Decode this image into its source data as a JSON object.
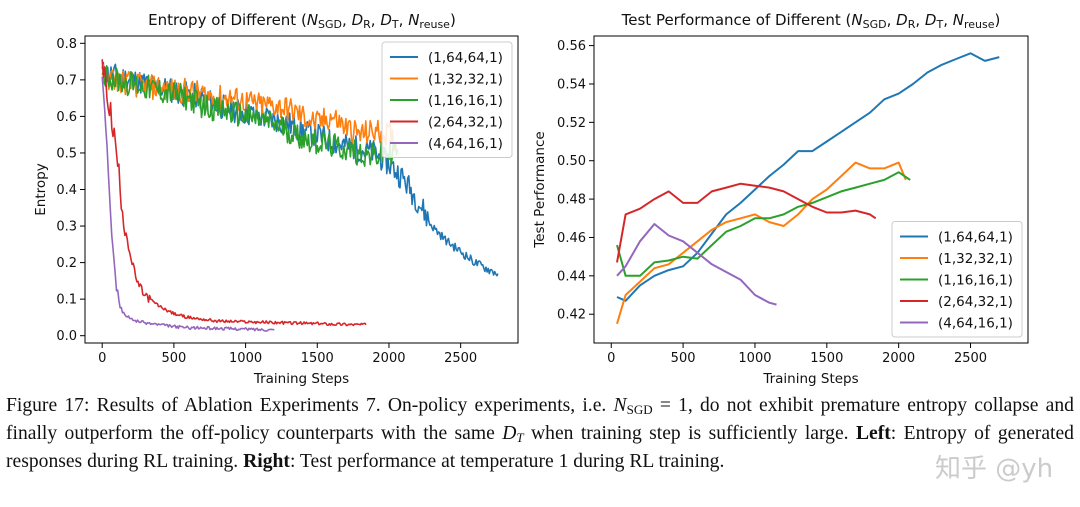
{
  "chart_data": [
    {
      "type": "line",
      "title_parts": [
        "Entropy of  Different (",
        "N",
        "SGD",
        ", ",
        "D",
        "R",
        ", ",
        "D",
        "T",
        ", ",
        "N",
        "reuse",
        ")"
      ],
      "xlabel": "Training Steps",
      "ylabel": "Entropy",
      "xlim": [
        -120,
        2900
      ],
      "ylim": [
        -0.02,
        0.82
      ],
      "xticks": [
        0,
        500,
        1000,
        1500,
        2000,
        2500
      ],
      "yticks": [
        0.0,
        0.1,
        0.2,
        0.3,
        0.4,
        0.5,
        0.6,
        0.7,
        0.8
      ],
      "ytick_labels": [
        "0.0",
        "0.1",
        "0.2",
        "0.3",
        "0.4",
        "0.5",
        "0.6",
        "0.7",
        "0.8"
      ],
      "grid": false,
      "legend": "top-right",
      "series": [
        {
          "name": "(1,64,64,1)",
          "color": "#1f77b4",
          "x": [
            0,
            100,
            200,
            300,
            400,
            500,
            600,
            700,
            800,
            900,
            1000,
            1100,
            1200,
            1300,
            1400,
            1500,
            1600,
            1700,
            1800,
            1900,
            2000,
            2100,
            2200,
            2300,
            2400,
            2500,
            2600,
            2700,
            2760
          ],
          "y": [
            0.72,
            0.71,
            0.7,
            0.69,
            0.68,
            0.67,
            0.66,
            0.65,
            0.63,
            0.62,
            0.61,
            0.6,
            0.59,
            0.58,
            0.56,
            0.55,
            0.53,
            0.52,
            0.51,
            0.5,
            0.47,
            0.43,
            0.37,
            0.3,
            0.26,
            0.23,
            0.2,
            0.18,
            0.17
          ]
        },
        {
          "name": "(1,32,32,1)",
          "color": "#ff7f0e",
          "x": [
            0,
            100,
            200,
            300,
            400,
            500,
            600,
            700,
            800,
            900,
            1000,
            1100,
            1200,
            1300,
            1400,
            1500,
            1600,
            1700,
            1800,
            1900,
            2000,
            2050
          ],
          "y": [
            0.71,
            0.7,
            0.69,
            0.68,
            0.68,
            0.67,
            0.67,
            0.66,
            0.65,
            0.65,
            0.64,
            0.63,
            0.63,
            0.62,
            0.6,
            0.58,
            0.6,
            0.57,
            0.55,
            0.56,
            0.55,
            0.53
          ]
        },
        {
          "name": "(1,16,16,1)",
          "color": "#2ca02c",
          "x": [
            0,
            100,
            200,
            300,
            400,
            500,
            600,
            700,
            800,
            900,
            1000,
            1100,
            1200,
            1300,
            1400,
            1500,
            1600,
            1700,
            1800,
            1900,
            2000,
            2060
          ],
          "y": [
            0.72,
            0.7,
            0.69,
            0.68,
            0.67,
            0.66,
            0.65,
            0.63,
            0.62,
            0.61,
            0.6,
            0.59,
            0.58,
            0.56,
            0.54,
            0.53,
            0.52,
            0.51,
            0.5,
            0.49,
            0.5,
            0.51
          ]
        },
        {
          "name": "(2,64,32,1)",
          "color": "#d62728",
          "x": [
            0,
            50,
            100,
            150,
            200,
            250,
            300,
            400,
            500,
            600,
            700,
            800,
            1000,
            1200,
            1400,
            1600,
            1840
          ],
          "y": [
            0.74,
            0.63,
            0.5,
            0.32,
            0.21,
            0.14,
            0.11,
            0.08,
            0.06,
            0.05,
            0.045,
            0.04,
            0.038,
            0.036,
            0.034,
            0.032,
            0.03
          ]
        },
        {
          "name": "(4,64,16,1)",
          "color": "#9467bd",
          "x": [
            0,
            25,
            50,
            75,
            100,
            125,
            150,
            200,
            300,
            400,
            500,
            600,
            800,
            1000,
            1200
          ],
          "y": [
            0.72,
            0.6,
            0.42,
            0.25,
            0.13,
            0.08,
            0.06,
            0.045,
            0.035,
            0.03,
            0.025,
            0.022,
            0.02,
            0.018,
            0.016
          ]
        }
      ]
    },
    {
      "type": "line",
      "title_parts": [
        "Test Performance of Different (",
        "N",
        "SGD",
        ", ",
        "D",
        "R",
        ", ",
        "D",
        "T",
        ", ",
        "N",
        "reuse",
        ")"
      ],
      "xlabel": "Training Steps",
      "ylabel": "Test Performance",
      "xlim": [
        -120,
        2900
      ],
      "ylim": [
        0.405,
        0.565
      ],
      "xticks": [
        0,
        500,
        1000,
        1500,
        2000,
        2500
      ],
      "yticks": [
        0.42,
        0.44,
        0.46,
        0.48,
        0.5,
        0.52,
        0.54,
        0.56
      ],
      "ytick_labels": [
        "0.42",
        "0.44",
        "0.46",
        "0.48",
        "0.50",
        "0.52",
        "0.54",
        "0.56"
      ],
      "grid": false,
      "legend": "bottom-right",
      "series": [
        {
          "name": "(1,64,64,1)",
          "color": "#1f77b4",
          "x": [
            40,
            100,
            200,
            300,
            400,
            500,
            600,
            700,
            800,
            900,
            1000,
            1100,
            1200,
            1300,
            1400,
            1500,
            1600,
            1700,
            1800,
            1900,
            2000,
            2100,
            2200,
            2300,
            2400,
            2500,
            2600,
            2700
          ],
          "y": [
            0.429,
            0.427,
            0.435,
            0.44,
            0.443,
            0.445,
            0.452,
            0.462,
            0.472,
            0.478,
            0.485,
            0.492,
            0.498,
            0.505,
            0.505,
            0.51,
            0.515,
            0.52,
            0.525,
            0.532,
            0.535,
            0.54,
            0.546,
            0.55,
            0.553,
            0.556,
            0.552,
            0.554
          ]
        },
        {
          "name": "(1,32,32,1)",
          "color": "#ff7f0e",
          "x": [
            40,
            100,
            200,
            300,
            400,
            500,
            600,
            700,
            800,
            900,
            1000,
            1100,
            1200,
            1300,
            1400,
            1500,
            1600,
            1700,
            1800,
            1900,
            2000,
            2050
          ],
          "y": [
            0.415,
            0.43,
            0.437,
            0.444,
            0.446,
            0.452,
            0.458,
            0.464,
            0.468,
            0.47,
            0.472,
            0.468,
            0.466,
            0.472,
            0.48,
            0.485,
            0.492,
            0.499,
            0.496,
            0.496,
            0.499,
            0.49
          ]
        },
        {
          "name": "(1,16,16,1)",
          "color": "#2ca02c",
          "x": [
            40,
            100,
            200,
            300,
            400,
            500,
            600,
            700,
            800,
            900,
            1000,
            1100,
            1200,
            1300,
            1400,
            1500,
            1600,
            1700,
            1800,
            1900,
            2000,
            2080
          ],
          "y": [
            0.456,
            0.44,
            0.44,
            0.447,
            0.448,
            0.45,
            0.449,
            0.456,
            0.463,
            0.466,
            0.47,
            0.47,
            0.472,
            0.476,
            0.478,
            0.481,
            0.484,
            0.486,
            0.488,
            0.49,
            0.494,
            0.49
          ]
        },
        {
          "name": "(2,64,32,1)",
          "color": "#d62728",
          "x": [
            40,
            100,
            200,
            300,
            400,
            500,
            600,
            700,
            800,
            900,
            1000,
            1100,
            1200,
            1300,
            1400,
            1500,
            1600,
            1700,
            1800,
            1840
          ],
          "y": [
            0.447,
            0.472,
            0.475,
            0.48,
            0.484,
            0.478,
            0.478,
            0.484,
            0.486,
            0.488,
            0.487,
            0.486,
            0.484,
            0.48,
            0.476,
            0.473,
            0.473,
            0.474,
            0.472,
            0.47
          ]
        },
        {
          "name": "(4,64,16,1)",
          "color": "#9467bd",
          "x": [
            40,
            100,
            200,
            300,
            400,
            500,
            600,
            700,
            800,
            900,
            1000,
            1100,
            1150
          ],
          "y": [
            0.44,
            0.445,
            0.458,
            0.467,
            0.461,
            0.458,
            0.452,
            0.446,
            0.442,
            0.438,
            0.43,
            0.426,
            0.425
          ]
        }
      ]
    }
  ],
  "caption": {
    "figure_label": "Figure 17:",
    "title": "Results of Ablation Experiments 7.",
    "text1": "On-policy experiments, i.e.",
    "nsgd_n": "N",
    "nsgd_sub": "SGD",
    "nsgd_eq": "= 1,",
    "text2": "do not exhibit premature entropy collapse and finally outperform the off-policy counterparts with the same",
    "dt_d": "D",
    "dt_sub": "T",
    "text3": "when training step is sufficiently large.",
    "left_label": "Left",
    "left_text": ": Entropy of generated responses during RL training.",
    "right_label": "Right",
    "right_text": ": Test performance at temperature 1 during RL training."
  },
  "watermark": "知乎 @yh"
}
